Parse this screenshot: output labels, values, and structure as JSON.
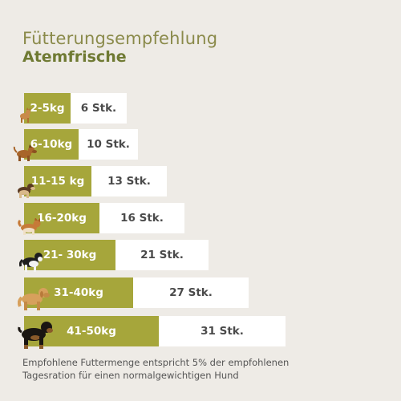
{
  "header": {
    "title": "Fütterungsempfehlung",
    "subtitle": "Atemfrische"
  },
  "rows": [
    {
      "weight": "2-5kg",
      "count": "6 Stk.",
      "dog_icon": "small-dog-icon"
    },
    {
      "weight": "6-10kg",
      "count": "10 Stk.",
      "dog_icon": "small-dog-icon"
    },
    {
      "weight": "11-15 kg",
      "count": "13 Stk.",
      "dog_icon": "medium-dog-icon"
    },
    {
      "weight": "16-20kg",
      "count": "16 Stk.",
      "dog_icon": "medium-dog-icon"
    },
    {
      "weight": "21- 30kg",
      "count": "21 Stk.",
      "dog_icon": "border-collie-icon"
    },
    {
      "weight": "31-40kg",
      "count": "27 Stk.",
      "dog_icon": "retriever-icon"
    },
    {
      "weight": "41-50kg",
      "count": "31 Stk.",
      "dog_icon": "rottweiler-icon"
    }
  ],
  "footnote": {
    "line1": "Empfohlene Futtermenge entspricht 5% der empfohlenen",
    "line2": "Tagesration für einen normalgewichtigen Hund"
  },
  "colors": {
    "background": "#eeebe6",
    "weight_bar": "#a6a63b",
    "count_bar": "#ffffff",
    "title": "#8a8a4a",
    "subtitle": "#6f7a33"
  }
}
